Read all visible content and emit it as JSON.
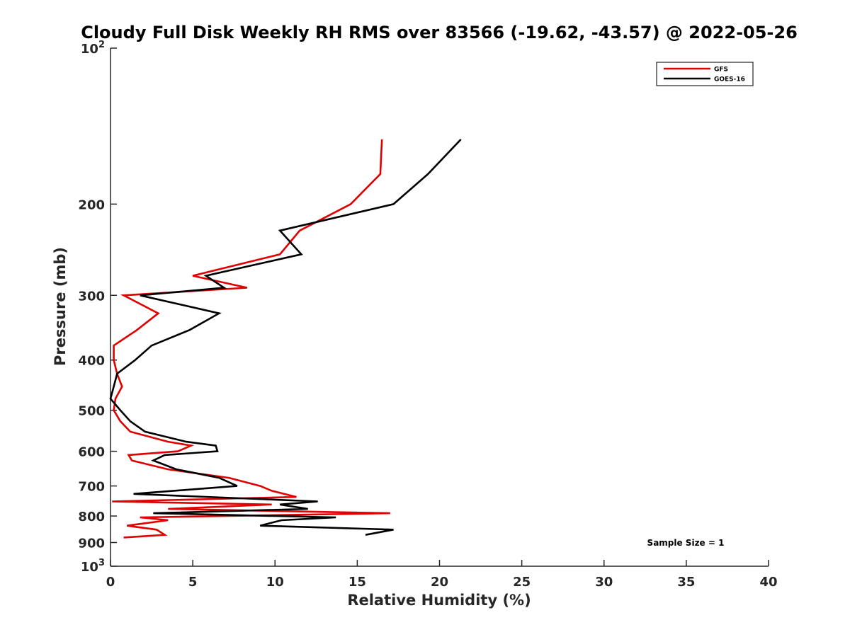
{
  "chart_data": {
    "type": "line",
    "title": "Cloudy Full Disk Weekly RH RMS over 83566 (-19.62, -43.57) @ 2022-05-26",
    "xlabel": "Relative Humidity (%)",
    "ylabel": "Pressure (mb)",
    "xlim": [
      0,
      40
    ],
    "ylim": [
      100,
      1000
    ],
    "y_scale": "log",
    "y_reversed": true,
    "grid": false,
    "legend_position": "top-right",
    "x_ticks": [
      "0",
      "5",
      "10",
      "15",
      "20",
      "25",
      "30",
      "35",
      "40"
    ],
    "y_ticks": [
      {
        "value": 100,
        "base": "10",
        "exp": "2"
      },
      {
        "value": 200,
        "label": "200"
      },
      {
        "value": 300,
        "label": "300"
      },
      {
        "value": 400,
        "label": "400"
      },
      {
        "value": 500,
        "label": "500"
      },
      {
        "value": 600,
        "label": "600"
      },
      {
        "value": 700,
        "label": "700"
      },
      {
        "value": 800,
        "label": "800"
      },
      {
        "value": 900,
        "label": "900"
      },
      {
        "value": 1000,
        "base": "10",
        "exp": "3"
      }
    ],
    "annotation": "Sample Size = 1",
    "series": [
      {
        "name": "GFS",
        "color": "#e00000",
        "points": [
          [
            16.5,
            150
          ],
          [
            16.4,
            175
          ],
          [
            14.6,
            200
          ],
          [
            11.5,
            225
          ],
          [
            10.3,
            250
          ],
          [
            5.0,
            275
          ],
          [
            8.3,
            290
          ],
          [
            0.8,
            300
          ],
          [
            2.9,
            325
          ],
          [
            1.6,
            350
          ],
          [
            0.2,
            375
          ],
          [
            0.2,
            400
          ],
          [
            0.4,
            425
          ],
          [
            0.7,
            450
          ],
          [
            0.3,
            475
          ],
          [
            0.2,
            500
          ],
          [
            0.6,
            525
          ],
          [
            1.2,
            550
          ],
          [
            3.5,
            575
          ],
          [
            4.9,
            585
          ],
          [
            4.1,
            600
          ],
          [
            1.1,
            610
          ],
          [
            1.3,
            625
          ],
          [
            3.5,
            650
          ],
          [
            7.2,
            675
          ],
          [
            9.1,
            700
          ],
          [
            9.8,
            715
          ],
          [
            11.3,
            735
          ],
          [
            0.1,
            750
          ],
          [
            9.8,
            760
          ],
          [
            3.5,
            775
          ],
          [
            17.0,
            790
          ],
          [
            1.8,
            805
          ],
          [
            3.5,
            815
          ],
          [
            1.0,
            835
          ],
          [
            2.8,
            850
          ],
          [
            3.3,
            870
          ],
          [
            0.8,
            880
          ]
        ]
      },
      {
        "name": "GOES-16",
        "color": "#000000",
        "points": [
          [
            21.3,
            150
          ],
          [
            19.3,
            175
          ],
          [
            17.2,
            200
          ],
          [
            10.3,
            225
          ],
          [
            11.6,
            250
          ],
          [
            5.8,
            275
          ],
          [
            6.9,
            290
          ],
          [
            1.8,
            300
          ],
          [
            6.6,
            325
          ],
          [
            4.8,
            350
          ],
          [
            2.5,
            375
          ],
          [
            1.5,
            400
          ],
          [
            0.4,
            425
          ],
          [
            0.2,
            450
          ],
          [
            0.0,
            475
          ],
          [
            0.6,
            500
          ],
          [
            1.2,
            525
          ],
          [
            2.1,
            550
          ],
          [
            4.6,
            575
          ],
          [
            6.4,
            585
          ],
          [
            6.5,
            600
          ],
          [
            3.3,
            610
          ],
          [
            2.6,
            625
          ],
          [
            4.0,
            650
          ],
          [
            6.6,
            675
          ],
          [
            7.7,
            700
          ],
          [
            1.4,
            725
          ],
          [
            12.6,
            750
          ],
          [
            10.3,
            760
          ],
          [
            12.0,
            775
          ],
          [
            2.6,
            790
          ],
          [
            13.7,
            805
          ],
          [
            10.4,
            815
          ],
          [
            9.1,
            835
          ],
          [
            17.2,
            850
          ],
          [
            15.5,
            870
          ]
        ]
      }
    ]
  }
}
